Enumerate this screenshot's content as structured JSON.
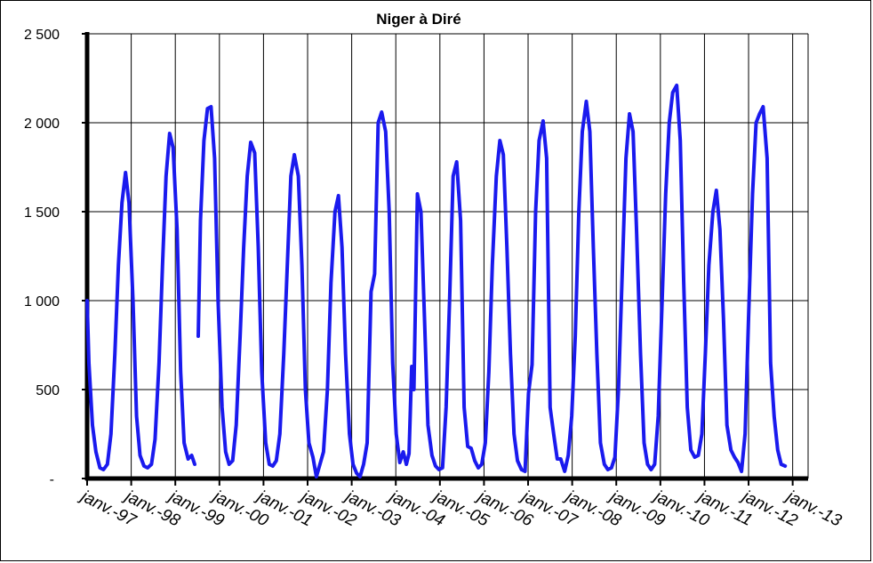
{
  "chart_data": {
    "type": "line",
    "title": "Niger à Diré",
    "xlabel": "",
    "ylabel": "",
    "ylim": [
      0,
      2500
    ],
    "xlim": [
      1997.0,
      2013.35
    ],
    "grid": true,
    "y_ticks": [
      {
        "value": 0,
        "label": "-"
      },
      {
        "value": 500,
        "label": "500"
      },
      {
        "value": 1000,
        "label": "1 000"
      },
      {
        "value": 1500,
        "label": "1 500"
      },
      {
        "value": 2000,
        "label": "2 000"
      },
      {
        "value": 2500,
        "label": "2 500"
      }
    ],
    "x_ticks": [
      {
        "value": 1997,
        "label": "janv.-97"
      },
      {
        "value": 1998,
        "label": "janv.-98"
      },
      {
        "value": 1999,
        "label": "janv.-99"
      },
      {
        "value": 2000,
        "label": "janv.-00"
      },
      {
        "value": 2001,
        "label": "janv.-01"
      },
      {
        "value": 2002,
        "label": "janv.-02"
      },
      {
        "value": 2003,
        "label": "janv.-03"
      },
      {
        "value": 2004,
        "label": "janv.-04"
      },
      {
        "value": 2005,
        "label": "janv.-05"
      },
      {
        "value": 2006,
        "label": "janv.-06"
      },
      {
        "value": 2007,
        "label": "janv.-07"
      },
      {
        "value": 2008,
        "label": "janv.-08"
      },
      {
        "value": 2009,
        "label": "janv.-09"
      },
      {
        "value": 2010,
        "label": "janv.-10"
      },
      {
        "value": 2011,
        "label": "janv.-11"
      },
      {
        "value": 2012,
        "label": "janv.-12"
      },
      {
        "value": 2013,
        "label": "janv.-13"
      }
    ],
    "series": [
      {
        "name": "",
        "color": "#1a1aee",
        "segments": [
          [
            [
              1997.0,
              1000
            ],
            [
              1997.04,
              650
            ],
            [
              1997.12,
              300
            ],
            [
              1997.2,
              150
            ],
            [
              1997.29,
              60
            ],
            [
              1997.37,
              50
            ],
            [
              1997.46,
              80
            ],
            [
              1997.54,
              250
            ],
            [
              1997.63,
              700
            ],
            [
              1997.71,
              1200
            ],
            [
              1997.79,
              1550
            ],
            [
              1997.87,
              1720
            ],
            [
              1997.95,
              1550
            ],
            [
              1998.04,
              1000
            ],
            [
              1998.12,
              350
            ],
            [
              1998.2,
              130
            ],
            [
              1998.29,
              70
            ],
            [
              1998.37,
              60
            ],
            [
              1998.46,
              80
            ],
            [
              1998.54,
              220
            ],
            [
              1998.63,
              650
            ],
            [
              1998.71,
              1200
            ],
            [
              1998.79,
              1700
            ],
            [
              1998.87,
              1940
            ],
            [
              1998.95,
              1860
            ],
            [
              1999.04,
              1400
            ],
            [
              1999.12,
              600
            ],
            [
              1999.2,
              200
            ],
            [
              1999.29,
              110
            ],
            [
              1999.37,
              130
            ],
            [
              1999.44,
              80
            ]
          ],
          [
            [
              1999.52,
              800
            ],
            [
              1999.57,
              1450
            ],
            [
              1999.65,
              1900
            ],
            [
              1999.73,
              2080
            ],
            [
              1999.81,
              2090
            ],
            [
              1999.89,
              1800
            ],
            [
              1999.97,
              1000
            ],
            [
              2000.06,
              400
            ],
            [
              2000.14,
              150
            ],
            [
              2000.22,
              80
            ],
            [
              2000.3,
              100
            ],
            [
              2000.38,
              300
            ],
            [
              2000.47,
              800
            ],
            [
              2000.55,
              1300
            ],
            [
              2000.63,
              1700
            ],
            [
              2000.71,
              1890
            ],
            [
              2000.8,
              1830
            ],
            [
              2000.88,
              1300
            ],
            [
              2000.96,
              600
            ],
            [
              2001.05,
              200
            ],
            [
              2001.13,
              80
            ],
            [
              2001.21,
              70
            ],
            [
              2001.29,
              100
            ],
            [
              2001.37,
              250
            ],
            [
              2001.46,
              700
            ],
            [
              2001.54,
              1200
            ],
            [
              2001.62,
              1700
            ],
            [
              2001.7,
              1820
            ],
            [
              2001.79,
              1700
            ],
            [
              2001.87,
              1200
            ],
            [
              2001.95,
              500
            ],
            [
              2002.03,
              200
            ],
            [
              2002.12,
              120
            ],
            [
              2002.2,
              10
            ],
            [
              2002.28,
              80
            ],
            [
              2002.36,
              150
            ],
            [
              2002.45,
              500
            ],
            [
              2002.53,
              1100
            ],
            [
              2002.62,
              1500
            ],
            [
              2002.7,
              1590
            ],
            [
              2002.78,
              1300
            ],
            [
              2002.86,
              700
            ],
            [
              2002.95,
              250
            ],
            [
              2003.03,
              80
            ],
            [
              2003.11,
              30
            ],
            [
              2003.19,
              10
            ],
            [
              2003.27,
              80
            ],
            [
              2003.35,
              200
            ],
            [
              2003.44,
              1050
            ],
            [
              2003.52,
              1150
            ],
            [
              2003.6,
              2000
            ],
            [
              2003.68,
              2060
            ],
            [
              2003.77,
              1950
            ],
            [
              2003.85,
              1500
            ],
            [
              2003.93,
              650
            ],
            [
              2004.01,
              250
            ],
            [
              2004.09,
              90
            ],
            [
              2004.17,
              150
            ],
            [
              2004.24,
              80
            ],
            [
              2004.3,
              140
            ],
            [
              2004.36,
              630
            ],
            [
              2004.41,
              500
            ],
            [
              2004.49,
              1600
            ],
            [
              2004.57,
              1500
            ],
            [
              2004.65,
              900
            ],
            [
              2004.73,
              300
            ],
            [
              2004.82,
              130
            ],
            [
              2004.9,
              70
            ],
            [
              2004.98,
              50
            ],
            [
              2005.06,
              60
            ],
            [
              2005.14,
              400
            ],
            [
              2005.22,
              1000
            ],
            [
              2005.3,
              1700
            ],
            [
              2005.38,
              1780
            ],
            [
              2005.47,
              1450
            ],
            [
              2005.55,
              400
            ],
            [
              2005.63,
              180
            ],
            [
              2005.71,
              170
            ],
            [
              2005.79,
              100
            ],
            [
              2005.87,
              60
            ],
            [
              2005.95,
              80
            ],
            [
              2006.03,
              200
            ],
            [
              2006.11,
              600
            ],
            [
              2006.19,
              1200
            ],
            [
              2006.28,
              1700
            ],
            [
              2006.36,
              1900
            ],
            [
              2006.44,
              1820
            ],
            [
              2006.52,
              1300
            ],
            [
              2006.6,
              700
            ],
            [
              2006.68,
              250
            ],
            [
              2006.76,
              100
            ],
            [
              2006.85,
              50
            ],
            [
              2006.93,
              40
            ],
            [
              2007.01,
              480
            ],
            [
              2007.09,
              640
            ],
            [
              2007.17,
              1500
            ],
            [
              2007.25,
              1900
            ],
            [
              2007.34,
              2010
            ],
            [
              2007.42,
              1800
            ],
            [
              2007.5,
              400
            ],
            [
              2007.58,
              250
            ],
            [
              2007.66,
              110
            ],
            [
              2007.74,
              110
            ],
            [
              2007.83,
              40
            ],
            [
              2007.91,
              130
            ],
            [
              2007.99,
              350
            ],
            [
              2008.07,
              800
            ],
            [
              2008.15,
              1500
            ],
            [
              2008.23,
              1950
            ],
            [
              2008.32,
              2120
            ],
            [
              2008.4,
              1950
            ],
            [
              2008.48,
              1300
            ],
            [
              2008.56,
              700
            ],
            [
              2008.64,
              200
            ],
            [
              2008.73,
              80
            ],
            [
              2008.81,
              50
            ],
            [
              2008.89,
              60
            ],
            [
              2008.97,
              120
            ],
            [
              2009.05,
              500
            ],
            [
              2009.14,
              1200
            ],
            [
              2009.22,
              1800
            ],
            [
              2009.3,
              2050
            ],
            [
              2009.38,
              1950
            ],
            [
              2009.46,
              1400
            ],
            [
              2009.55,
              700
            ],
            [
              2009.63,
              200
            ],
            [
              2009.71,
              80
            ],
            [
              2009.79,
              50
            ],
            [
              2009.87,
              80
            ],
            [
              2009.95,
              350
            ],
            [
              2010.04,
              1000
            ],
            [
              2010.12,
              1600
            ],
            [
              2010.2,
              2000
            ],
            [
              2010.28,
              2170
            ],
            [
              2010.37,
              2210
            ],
            [
              2010.45,
              1900
            ],
            [
              2010.53,
              1100
            ],
            [
              2010.61,
              400
            ],
            [
              2010.69,
              160
            ],
            [
              2010.78,
              120
            ],
            [
              2010.86,
              130
            ],
            [
              2010.94,
              250
            ],
            [
              2011.02,
              700
            ],
            [
              2011.1,
              1200
            ],
            [
              2011.19,
              1500
            ],
            [
              2011.27,
              1620
            ],
            [
              2011.35,
              1400
            ],
            [
              2011.43,
              900
            ],
            [
              2011.51,
              300
            ],
            [
              2011.6,
              160
            ],
            [
              2011.68,
              120
            ],
            [
              2011.76,
              90
            ],
            [
              2011.84,
              40
            ],
            [
              2011.92,
              250
            ],
            [
              2012.0,
              900
            ],
            [
              2012.09,
              1600
            ],
            [
              2012.17,
              2000
            ],
            [
              2012.25,
              2050
            ],
            [
              2012.33,
              2090
            ],
            [
              2012.42,
              1800
            ],
            [
              2012.5,
              650
            ],
            [
              2012.58,
              350
            ],
            [
              2012.66,
              160
            ],
            [
              2012.74,
              80
            ],
            [
              2012.83,
              70
            ]
          ]
        ]
      }
    ]
  }
}
